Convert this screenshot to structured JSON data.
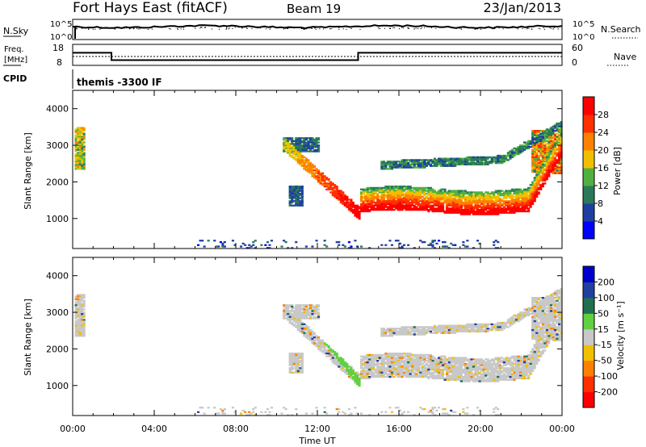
{
  "header": {
    "site": "Fort Hays East (fitACF)",
    "beam": "Beam 19",
    "date": "23/Jan/2013"
  },
  "panels": {
    "nsky_label": "N.Sky",
    "nsearch_label": "N.Search",
    "freq_label_1": "Freq.",
    "freq_label_2": "[MHz]",
    "nave_label": "Nave",
    "cpid_label": "CPID",
    "cpid_value": "themis -3300 IF"
  },
  "chart_data": {
    "type": "heatmap",
    "xlabel": "Time UT",
    "ylabel": "Slant Range [km]",
    "x_ticks": [
      "00:00",
      "04:00",
      "08:00",
      "12:00",
      "16:00",
      "20:00",
      "00:00"
    ],
    "x_range_hours": [
      0,
      24
    ],
    "y_range_km": [
      180,
      4500
    ],
    "y_ticks": [
      1000,
      2000,
      3000,
      4000
    ],
    "noise_panel": {
      "left_ticks": [
        "10^5",
        "10^0"
      ],
      "right_ticks": [
        "10^5",
        "10^0"
      ]
    },
    "freq_panel": {
      "left_ticks": [
        18,
        8
      ],
      "right_ticks": [
        60,
        0
      ],
      "freq_steps": [
        [
          0,
          14
        ],
        [
          1.9,
          10.5
        ],
        [
          14,
          14
        ]
      ]
    },
    "power": {
      "colorbar_label": "Power [dB]",
      "colorbar_ticks": [
        4,
        8,
        12,
        16,
        20,
        24,
        28
      ],
      "colors": [
        "#0000ff",
        "#1f3fa0",
        "#2a7a5a",
        "#50b040",
        "#f0c000",
        "#ff8000",
        "#ff3000",
        "#ff0000"
      ]
    },
    "velocity": {
      "colorbar_label": "Velocity [m s⁻¹]",
      "colorbar_ticks": [
        200,
        100,
        50,
        15,
        -15,
        -50,
        -100,
        -200
      ],
      "colors": [
        "#0000cc",
        "#2040a0",
        "#207050",
        "#60d040",
        "#c8c8c8",
        "#f0c000",
        "#ff8000",
        "#ff3000",
        "#ff0000"
      ]
    },
    "features": [
      {
        "name": "early-patch",
        "t": [
          0.0,
          0.5
        ],
        "range": [
          2300,
          3500
        ]
      },
      {
        "name": "evening-band",
        "t": [
          10.2,
          14.0
        ],
        "range": [
          1000,
          3200
        ]
      },
      {
        "name": "main-band",
        "t": [
          14.0,
          24.0
        ],
        "range": [
          1150,
          2000
        ]
      },
      {
        "name": "upper-band",
        "t": [
          15.0,
          23.5
        ],
        "range": [
          2300,
          3500
        ]
      }
    ]
  }
}
